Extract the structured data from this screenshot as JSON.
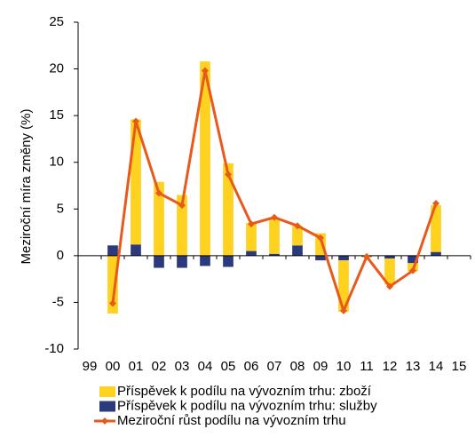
{
  "chart_data": {
    "type": "bar",
    "stacked": true,
    "y_label": "Meziroční míra změny (%)",
    "categories": [
      "99",
      "00",
      "01",
      "02",
      "03",
      "04",
      "05",
      "06",
      "07",
      "08",
      "09",
      "10",
      "11",
      "12",
      "13",
      "14",
      "15"
    ],
    "series": [
      {
        "name": "Příspěvek k podílu na vývozním trhu: zboží",
        "type": "bar",
        "color": "#ffd21f",
        "values": [
          null,
          -6.2,
          13.4,
          7.9,
          6.5,
          20.8,
          9.9,
          3.0,
          3.9,
          2.1,
          2.4,
          -5.5,
          -0.1,
          -2.8,
          -0.9,
          5.0,
          null
        ]
      },
      {
        "name": "Příspěvek k podílu na vývozním trhu: služby",
        "type": "bar",
        "color": "#2b3a7c",
        "values": [
          null,
          1.1,
          1.2,
          -1.3,
          -1.3,
          -1.1,
          -1.2,
          0.5,
          0.2,
          1.1,
          -0.5,
          -0.5,
          -0.1,
          -0.3,
          -0.8,
          0.4,
          null
        ]
      },
      {
        "name": "Meziroční růst podílu na vývozním trhu",
        "type": "line",
        "color": "#e8591c",
        "values": [
          null,
          -5.1,
          14.4,
          6.7,
          5.4,
          19.8,
          8.7,
          3.4,
          4.1,
          3.2,
          1.9,
          -5.9,
          -0.1,
          -3.3,
          -1.6,
          5.6,
          null
        ]
      }
    ],
    "ylim": [
      -10,
      25
    ],
    "yticks": [
      -10,
      -5,
      0,
      5,
      10,
      15,
      20,
      25
    ]
  }
}
